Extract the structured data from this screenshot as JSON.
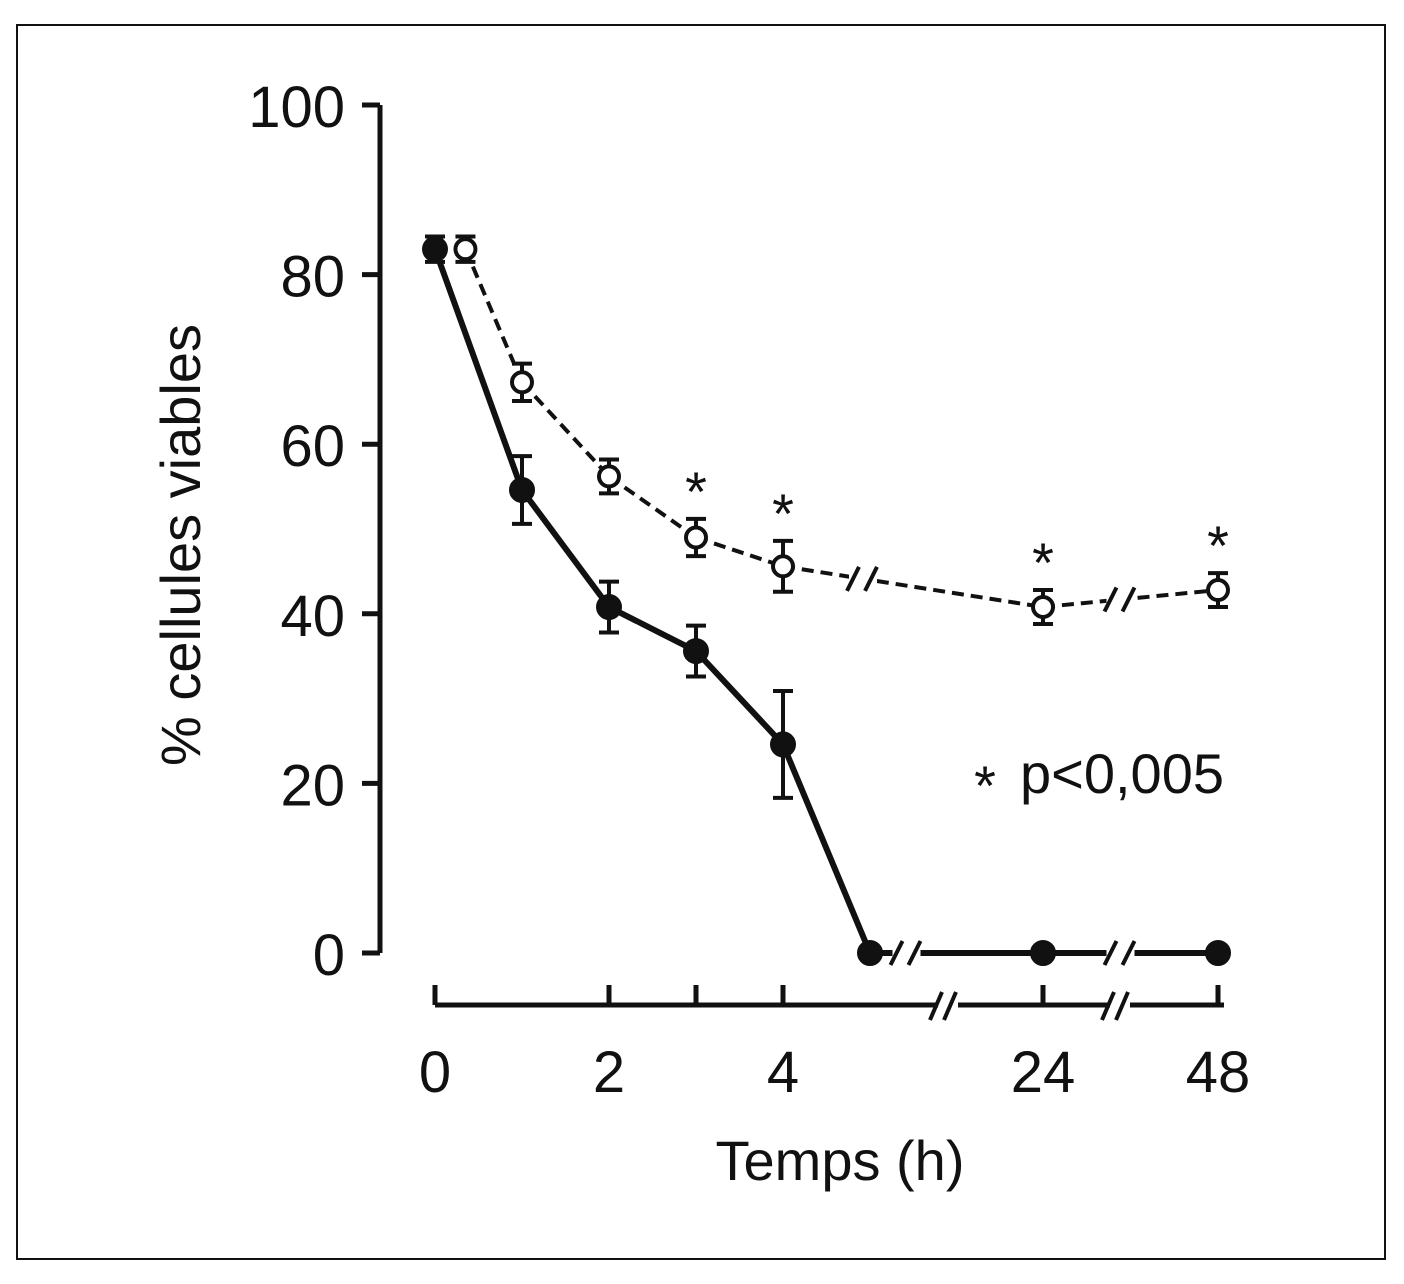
{
  "chart_data": {
    "type": "line",
    "title": "",
    "xlabel": "Temps (h)",
    "ylabel": "% cellules viables",
    "ylim": [
      0,
      100
    ],
    "yticks": [
      "0",
      "20",
      "40",
      "60",
      "80",
      "100"
    ],
    "xticks": [
      "0",
      "2",
      "4",
      "24",
      "48"
    ],
    "x_axis_breaks": "between 5 and 24, between 24 and 48",
    "annotation": "p<0,005",
    "annotation_symbol": "*",
    "series": [
      {
        "name": "filled circles (solid line)",
        "marker": "filled-circle",
        "x": [
          0,
          1,
          2,
          3,
          4,
          5,
          24,
          48
        ],
        "y": [
          83,
          54.6,
          40.8,
          35.6,
          24.6,
          0,
          0,
          0
        ],
        "err": [
          1.5,
          4,
          3,
          3,
          6.3,
          0,
          0,
          0
        ]
      },
      {
        "name": "open circles (dashed line)",
        "marker": "open-circle",
        "x": [
          0.35,
          1,
          2,
          3,
          4,
          24,
          48
        ],
        "y": [
          83,
          67.3,
          56.2,
          49,
          45.6,
          40.8,
          42.8
        ],
        "err": [
          1.5,
          2.2,
          2,
          2.2,
          3,
          2,
          2
        ],
        "significant": [
          false,
          false,
          false,
          true,
          true,
          true,
          true
        ]
      }
    ]
  }
}
